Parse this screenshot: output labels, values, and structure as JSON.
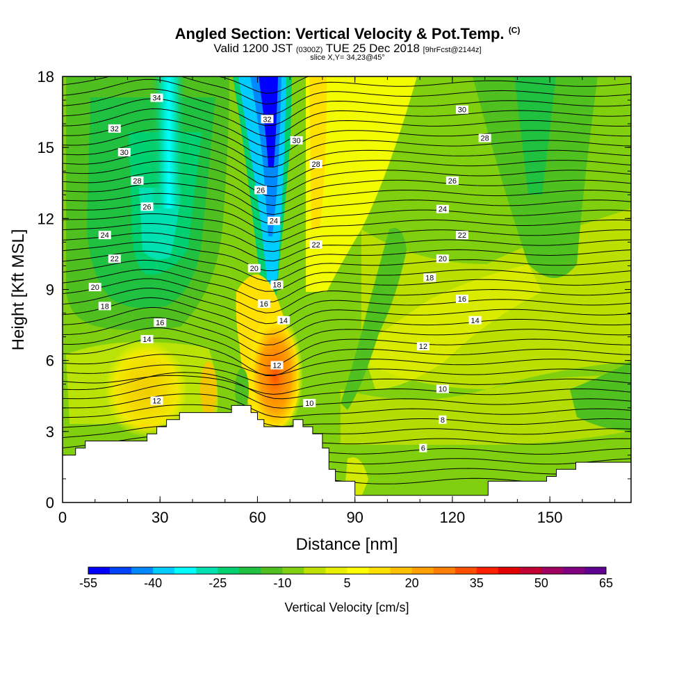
{
  "header": {
    "title": "Angled Section: Vertical Velocity & Pot.Temp.",
    "title_suffix": "(C)",
    "valid_main": "Valid 1200 JST",
    "valid_utc": "(0300Z)",
    "valid_date": "TUE 25 Dec 2018",
    "valid_fcst": "[9hrFcst@2144z]",
    "slice": "slice X,Y= 34,23@45°"
  },
  "chart_data": {
    "type": "heatmap",
    "xlabel": "Distance [nm]",
    "ylabel": "Height [Kft MSL]",
    "xlim": [
      0,
      175
    ],
    "ylim": [
      0,
      18
    ],
    "x_ticks": [
      "0",
      "30",
      "60",
      "90",
      "120",
      "150"
    ],
    "y_ticks": [
      "0",
      "3",
      "6",
      "9",
      "12",
      "15",
      "18"
    ],
    "colorbar": {
      "label": "Vertical Velocity [cm/s]",
      "tick_labels": [
        "-55",
        "-40",
        "-25",
        "-10",
        "5",
        "20",
        "35",
        "50",
        "65"
      ],
      "colors": [
        "#0000ff",
        "#0044ff",
        "#0088ff",
        "#00ccff",
        "#00ffff",
        "#00e0b0",
        "#00d070",
        "#20c040",
        "#50c020",
        "#80d010",
        "#c0e000",
        "#e8f000",
        "#ffff00",
        "#ffe000",
        "#ffc000",
        "#ffa000",
        "#ff8000",
        "#ff5000",
        "#ff2000",
        "#e00000",
        "#c00030",
        "#a00060",
        "#800080",
        "#600090"
      ]
    },
    "terrain_profile": [
      [
        0,
        2.0
      ],
      [
        4,
        2.0
      ],
      [
        4,
        2.3
      ],
      [
        7,
        2.3
      ],
      [
        7,
        2.6
      ],
      [
        26,
        2.6
      ],
      [
        26,
        2.9
      ],
      [
        29,
        2.9
      ],
      [
        29,
        3.2
      ],
      [
        32,
        3.2
      ],
      [
        32,
        3.5
      ],
      [
        36,
        3.5
      ],
      [
        36,
        3.8
      ],
      [
        52,
        3.8
      ],
      [
        52,
        4.1
      ],
      [
        58,
        4.1
      ],
      [
        58,
        3.8
      ],
      [
        60,
        3.8
      ],
      [
        60,
        3.5
      ],
      [
        62,
        3.5
      ],
      [
        62,
        3.2
      ],
      [
        71,
        3.2
      ],
      [
        71,
        3.5
      ],
      [
        74,
        3.5
      ],
      [
        74,
        3.2
      ],
      [
        77,
        3.2
      ],
      [
        77,
        2.9
      ],
      [
        80,
        2.9
      ],
      [
        80,
        2.3
      ],
      [
        82,
        2.3
      ],
      [
        82,
        1.4
      ],
      [
        84,
        1.4
      ],
      [
        84,
        0.9
      ],
      [
        90,
        0.9
      ],
      [
        90,
        0.3
      ],
      [
        131,
        0.3
      ],
      [
        131,
        0.9
      ],
      [
        149,
        0.9
      ],
      [
        149,
        1.1
      ],
      [
        152,
        1.1
      ],
      [
        152,
        1.4
      ],
      [
        158,
        1.4
      ],
      [
        158,
        1.7
      ],
      [
        175,
        1.7
      ]
    ],
    "vertical_velocity_features": [
      {
        "x": 65,
        "y": 16.5,
        "value": -55
      },
      {
        "x": 32,
        "y": 16.0,
        "value": -30
      },
      {
        "x": 64,
        "y": 5.0,
        "value": 35
      },
      {
        "x": 27,
        "y": 5.0,
        "value": 20
      },
      {
        "x": 80,
        "y": 15.0,
        "value": 10
      },
      {
        "x": 120,
        "y": 8.0,
        "value": 3
      },
      {
        "x": 20,
        "y": 12.0,
        "value": -20
      }
    ],
    "contour_labels": [
      {
        "x": 29,
        "y": 17.1,
        "text": "34"
      },
      {
        "x": 16,
        "y": 15.8,
        "text": "32"
      },
      {
        "x": 19,
        "y": 14.8,
        "text": "30"
      },
      {
        "x": 23,
        "y": 13.6,
        "text": "28"
      },
      {
        "x": 26,
        "y": 12.5,
        "text": "26"
      },
      {
        "x": 13,
        "y": 11.3,
        "text": "24"
      },
      {
        "x": 16,
        "y": 10.3,
        "text": "22"
      },
      {
        "x": 10,
        "y": 9.1,
        "text": "20"
      },
      {
        "x": 13,
        "y": 8.3,
        "text": "18"
      },
      {
        "x": 30,
        "y": 7.6,
        "text": "16"
      },
      {
        "x": 26,
        "y": 6.9,
        "text": "14"
      },
      {
        "x": 29,
        "y": 4.3,
        "text": "12"
      },
      {
        "x": 63,
        "y": 16.2,
        "text": "32"
      },
      {
        "x": 72,
        "y": 15.3,
        "text": "30"
      },
      {
        "x": 78,
        "y": 14.3,
        "text": "28"
      },
      {
        "x": 61,
        "y": 13.2,
        "text": "26"
      },
      {
        "x": 65,
        "y": 11.9,
        "text": "24"
      },
      {
        "x": 78,
        "y": 10.9,
        "text": "22"
      },
      {
        "x": 59,
        "y": 9.9,
        "text": "20"
      },
      {
        "x": 66,
        "y": 9.2,
        "text": "18"
      },
      {
        "x": 62,
        "y": 8.4,
        "text": "16"
      },
      {
        "x": 68,
        "y": 7.7,
        "text": "14"
      },
      {
        "x": 66,
        "y": 5.8,
        "text": "12"
      },
      {
        "x": 76,
        "y": 4.2,
        "text": "10"
      },
      {
        "x": 123,
        "y": 16.6,
        "text": "30"
      },
      {
        "x": 130,
        "y": 15.4,
        "text": "28"
      },
      {
        "x": 120,
        "y": 13.6,
        "text": "26"
      },
      {
        "x": 117,
        "y": 12.4,
        "text": "24"
      },
      {
        "x": 123,
        "y": 11.3,
        "text": "22"
      },
      {
        "x": 117,
        "y": 10.3,
        "text": "20"
      },
      {
        "x": 113,
        "y": 9.5,
        "text": "18"
      },
      {
        "x": 123,
        "y": 8.6,
        "text": "16"
      },
      {
        "x": 127,
        "y": 7.7,
        "text": "14"
      },
      {
        "x": 111,
        "y": 6.6,
        "text": "12"
      },
      {
        "x": 117,
        "y": 4.8,
        "text": "10"
      },
      {
        "x": 117,
        "y": 3.5,
        "text": "8"
      },
      {
        "x": 111,
        "y": 2.3,
        "text": "6"
      }
    ]
  }
}
